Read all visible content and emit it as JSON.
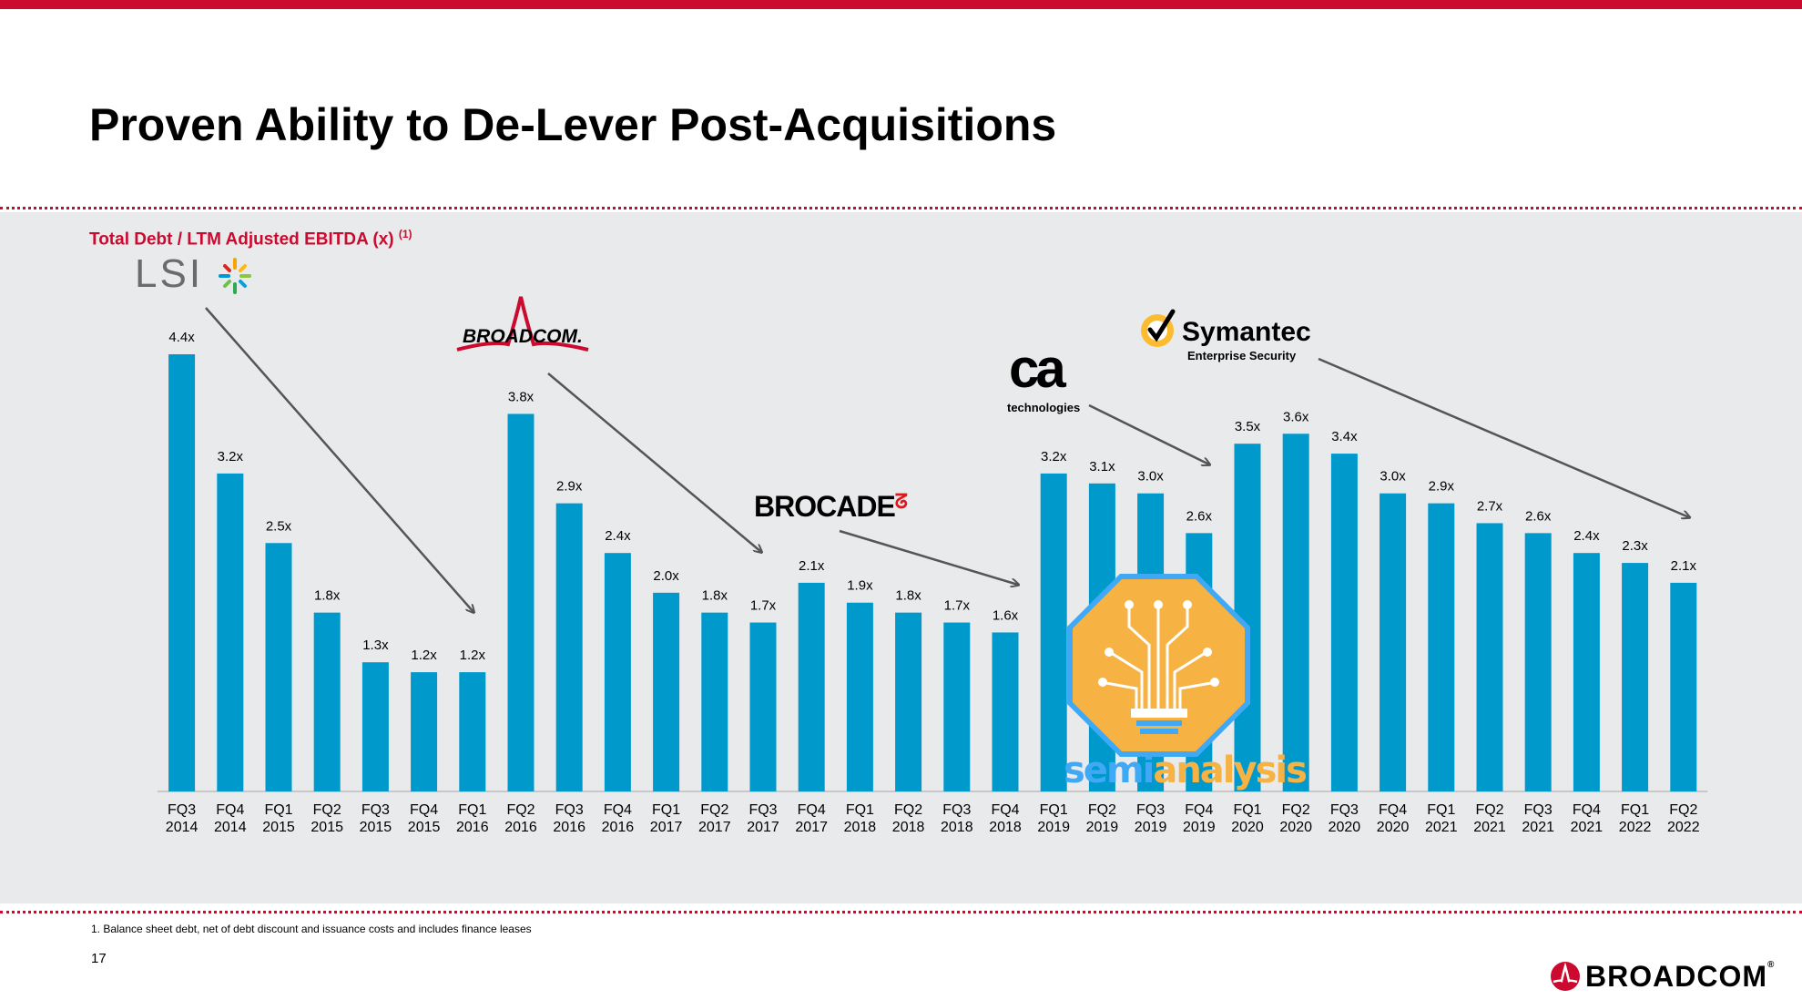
{
  "header": {
    "title": "Proven Ability to De-Lever Post-Acquisitions"
  },
  "colors": {
    "accent": "#cc092f",
    "bar": "#0099cc",
    "panel": "#e9eaeb",
    "arrow": "#555555"
  },
  "logos": {
    "lsi": "LSI",
    "broadcom": "BROADCOM.",
    "brocade": "BROCADE",
    "ca_mark": "ca",
    "ca_sub": "technologies",
    "symantec": "Symantec",
    "symantec_sub": "Enterprise Security",
    "watermark_a": "semi",
    "watermark_b": "analysis"
  },
  "chart_data": {
    "type": "bar",
    "title": "Total Debt / LTM Adjusted EBITDA (x)",
    "title_note": "(1)",
    "xlabel": "",
    "ylabel": "",
    "ylim": [
      0,
      4.4
    ],
    "grid": false,
    "categories": [
      [
        "FQ3",
        "2014"
      ],
      [
        "FQ4",
        "2014"
      ],
      [
        "FQ1",
        "2015"
      ],
      [
        "FQ2",
        "2015"
      ],
      [
        "FQ3",
        "2015"
      ],
      [
        "FQ4",
        "2015"
      ],
      [
        "FQ1",
        "2016"
      ],
      [
        "FQ2",
        "2016"
      ],
      [
        "FQ3",
        "2016"
      ],
      [
        "FQ4",
        "2016"
      ],
      [
        "FQ1",
        "2017"
      ],
      [
        "FQ2",
        "2017"
      ],
      [
        "FQ3",
        "2017"
      ],
      [
        "FQ4",
        "2017"
      ],
      [
        "FQ1",
        "2018"
      ],
      [
        "FQ2",
        "2018"
      ],
      [
        "FQ3",
        "2018"
      ],
      [
        "FQ4",
        "2018"
      ],
      [
        "FQ1",
        "2019"
      ],
      [
        "FQ2",
        "2019"
      ],
      [
        "FQ3",
        "2019"
      ],
      [
        "FQ4",
        "2019"
      ],
      [
        "FQ1",
        "2020"
      ],
      [
        "FQ2",
        "2020"
      ],
      [
        "FQ3",
        "2020"
      ],
      [
        "FQ4",
        "2020"
      ],
      [
        "FQ1",
        "2021"
      ],
      [
        "FQ2",
        "2021"
      ],
      [
        "FQ3",
        "2021"
      ],
      [
        "FQ4",
        "2021"
      ],
      [
        "FQ1",
        "2022"
      ],
      [
        "FQ2",
        "2022"
      ]
    ],
    "values": [
      4.4,
      3.2,
      2.5,
      1.8,
      1.3,
      1.2,
      1.2,
      3.8,
      2.9,
      2.4,
      2.0,
      1.8,
      1.7,
      2.1,
      1.9,
      1.8,
      1.7,
      1.6,
      3.2,
      3.1,
      3.0,
      2.6,
      3.5,
      3.6,
      3.4,
      3.0,
      2.9,
      2.7,
      2.6,
      2.4,
      2.3,
      2.1
    ],
    "labels": [
      "4.4x",
      "3.2x",
      "2.5x",
      "1.8x",
      "1.3x",
      "1.2x",
      "1.2x",
      "3.8x",
      "2.9x",
      "2.4x",
      "2.0x",
      "1.8x",
      "1.7x",
      "2.1x",
      "1.9x",
      "1.8x",
      "1.7x",
      "1.6x",
      "3.2x",
      "3.1x",
      "3.0x",
      "2.6x",
      "3.5x",
      "3.6x",
      "3.4x",
      "3.0x",
      "2.9x",
      "2.7x",
      "2.6x",
      "2.4x",
      "2.3x",
      "2.1x"
    ],
    "annotations": [
      {
        "text": "LSI",
        "from_category": "FQ3 2014",
        "to_category": "FQ1 2016"
      },
      {
        "text": "BROADCOM.",
        "from_category": "FQ2 2016",
        "to_category": "FQ3 2017"
      },
      {
        "text": "BROCADE",
        "from_category": "FQ4 2017",
        "to_category": "FQ4 2018"
      },
      {
        "text": "ca technologies",
        "from_category": "FQ1 2019",
        "to_category": "FQ4 2019"
      },
      {
        "text": "Symantec Enterprise Security",
        "from_category": "FQ1 2020",
        "to_category": "FQ2 2022"
      }
    ]
  },
  "footer": {
    "footnote": "1. Balance sheet debt, net of debt discount and issuance costs and includes finance leases",
    "page_number": "17",
    "brand": "BROADCOM",
    "brand_mark": "®"
  }
}
